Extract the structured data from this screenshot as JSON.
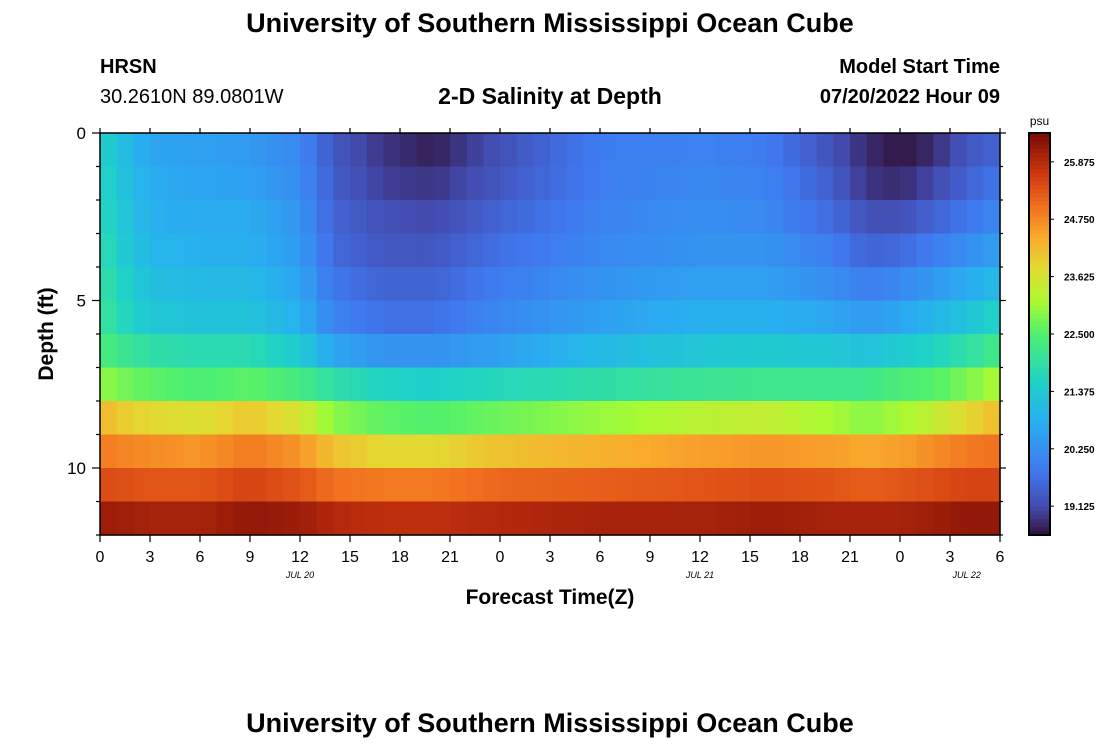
{
  "header": {
    "title": "University of Southern Mississippi Ocean Cube",
    "station": "HRSN",
    "coords": "30.2610N  89.0801W",
    "subtitle": "2-D Salinity at Depth",
    "model_start_label": "Model Start Time",
    "model_start_value": "07/20/2022 Hour 09"
  },
  "footer": {
    "title": "University of Southern Mississippi Ocean Cube"
  },
  "chart_data": {
    "type": "heatmap",
    "xlabel": "Forecast Time(Z)",
    "ylabel": "Depth (ft)",
    "x_tick_labels": [
      "0",
      "3",
      "6",
      "9",
      "12",
      "15",
      "18",
      "21",
      "0",
      "3",
      "6",
      "9",
      "12",
      "15",
      "18",
      "21",
      "0",
      "3",
      "6"
    ],
    "x_range_hours": [
      0,
      54
    ],
    "date_labels": [
      {
        "label": "JUL 20",
        "hour": 12
      },
      {
        "label": "JUL 21",
        "hour": 36
      },
      {
        "label": "JUL 22",
        "hour": 52
      }
    ],
    "y_ticks": [
      0,
      5,
      10
    ],
    "y_tick_labels": [
      "0",
      "5",
      "10"
    ],
    "ylim": [
      0,
      12
    ],
    "depth_bins_ft": [
      0.5,
      1.5,
      2.5,
      3.5,
      4.5,
      5.5,
      6.5,
      7.5,
      8.5,
      9.5,
      10.5,
      11.5
    ],
    "colorbar": {
      "unit": "psu",
      "tick_labels": [
        "25.875",
        "24.750",
        "23.625",
        "22.500",
        "21.375",
        "20.250",
        "19.125"
      ],
      "ticks": [
        25.875,
        24.75,
        23.625,
        22.5,
        21.375,
        20.25,
        19.125
      ],
      "range": [
        18.56,
        26.44
      ]
    },
    "profile_hours": [
      0,
      1,
      3,
      6,
      9,
      12,
      14,
      17,
      20,
      24,
      30,
      36,
      40,
      44,
      46,
      48,
      50,
      52,
      54
    ],
    "salinity_psu": [
      [
        21.6,
        21.2,
        20.6,
        20.5,
        20.4,
        20.1,
        19.3,
        18.9,
        18.7,
        19.2,
        19.9,
        20.0,
        19.9,
        19.2,
        18.8,
        18.6,
        18.8,
        19.3,
        19.5
      ],
      [
        21.7,
        21.3,
        20.7,
        20.6,
        20.5,
        20.2,
        19.4,
        19.0,
        18.9,
        19.3,
        19.9,
        20.1,
        20.0,
        19.4,
        18.9,
        18.8,
        19.1,
        19.5,
        19.8
      ],
      [
        21.8,
        21.4,
        20.8,
        20.7,
        20.7,
        20.3,
        19.5,
        19.2,
        19.1,
        19.5,
        20.0,
        20.2,
        20.1,
        19.6,
        19.2,
        19.2,
        19.5,
        19.8,
        20.1
      ],
      [
        21.9,
        21.5,
        20.9,
        20.8,
        20.8,
        20.4,
        19.6,
        19.3,
        19.3,
        19.7,
        20.1,
        20.3,
        20.3,
        19.9,
        19.5,
        19.6,
        19.9,
        20.2,
        20.5
      ],
      [
        22.0,
        21.7,
        21.1,
        21.0,
        21.0,
        20.6,
        19.8,
        19.5,
        19.5,
        19.9,
        20.3,
        20.5,
        20.5,
        20.2,
        19.9,
        20.1,
        20.4,
        20.7,
        21.0
      ],
      [
        22.1,
        21.8,
        21.3,
        21.2,
        21.2,
        20.8,
        20.0,
        19.7,
        19.7,
        20.1,
        20.5,
        20.8,
        20.8,
        20.6,
        20.4,
        20.6,
        20.9,
        21.2,
        21.6
      ],
      [
        22.4,
        22.2,
        21.9,
        21.8,
        21.8,
        21.4,
        20.6,
        20.3,
        20.3,
        20.5,
        21.0,
        21.3,
        21.4,
        21.3,
        21.2,
        21.4,
        21.6,
        21.9,
        22.3
      ],
      [
        23.0,
        22.8,
        22.6,
        22.4,
        22.6,
        22.3,
        21.9,
        21.6,
        21.5,
        21.7,
        21.9,
        22.1,
        22.2,
        22.2,
        22.2,
        22.4,
        22.5,
        22.8,
        23.2
      ],
      [
        24.3,
        24.0,
        23.8,
        23.7,
        24.0,
        23.6,
        22.9,
        22.6,
        22.5,
        22.7,
        23.0,
        23.3,
        23.4,
        23.1,
        22.9,
        23.1,
        23.4,
        23.8,
        24.2
      ],
      [
        24.9,
        24.8,
        24.7,
        24.6,
        24.9,
        24.6,
        24.1,
        23.8,
        23.8,
        24.1,
        24.3,
        24.5,
        24.6,
        24.5,
        24.4,
        24.5,
        24.7,
        24.9,
        25.0
      ],
      [
        25.4,
        25.4,
        25.3,
        25.3,
        25.5,
        25.3,
        25.0,
        24.9,
        24.9,
        25.1,
        25.2,
        25.3,
        25.4,
        25.3,
        25.2,
        25.3,
        25.4,
        25.5,
        25.5
      ],
      [
        26.1,
        26.1,
        26.0,
        26.0,
        26.2,
        26.1,
        25.9,
        25.8,
        25.8,
        25.9,
        26.0,
        26.0,
        26.1,
        26.0,
        26.0,
        26.0,
        26.1,
        26.2,
        26.2
      ]
    ]
  }
}
